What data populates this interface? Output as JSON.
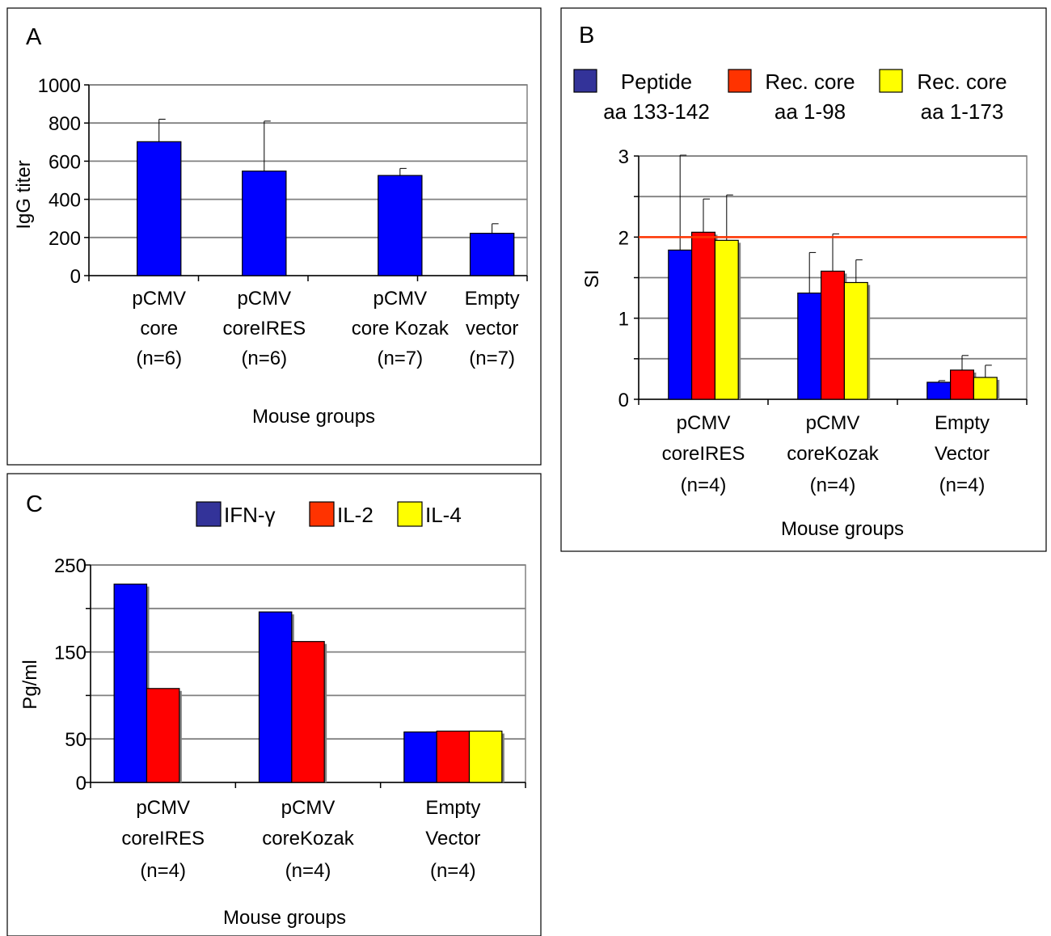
{
  "chart_data": [
    {
      "panel": "A",
      "type": "bar",
      "categories": [
        [
          "pCMV",
          "core",
          "(n=6)"
        ],
        [
          "pCMV",
          "coreIRES",
          "(n=6)"
        ],
        [
          "pCMV",
          "core Kozak",
          "(n=7)"
        ],
        [
          "Empty",
          "vector",
          "(n=7)"
        ]
      ],
      "series": [
        {
          "values": [
            702,
            548,
            525,
            222
          ],
          "errors": [
            118,
            262,
            37,
            50
          ],
          "color": "#0000ff"
        }
      ],
      "xlabel": "Mouse groups",
      "ylabel": "IgG titer",
      "ylim": [
        0,
        1000
      ],
      "yticks": [
        0,
        200,
        400,
        600,
        800,
        1000
      ],
      "ytick_labels": [
        "0",
        "200",
        "400",
        "600",
        "800",
        "1000"
      ],
      "grid": true
    },
    {
      "panel": "B",
      "type": "bar",
      "categories": [
        [
          "pCMV",
          "coreIRES",
          "(n=4)"
        ],
        [
          "pCMV",
          "coreKozak",
          "(n=4)"
        ],
        [
          "Empty",
          "Vector",
          "(n=4)"
        ]
      ],
      "series": [
        {
          "name": [
            "Peptide",
            "aa 133-142"
          ],
          "values": [
            1.84,
            1.31,
            0.21
          ],
          "errors": [
            1.17,
            0.5,
            0.02
          ],
          "color": "#0000ff",
          "legend_color": "#333399"
        },
        {
          "name": [
            "Rec. core",
            "aa 1-98"
          ],
          "values": [
            2.06,
            1.58,
            0.36
          ],
          "errors": [
            0.41,
            0.46,
            0.18
          ],
          "color": "#ff0000",
          "legend_color": "#ff3300"
        },
        {
          "name": [
            "Rec. core",
            "aa 1-173"
          ],
          "values": [
            1.96,
            1.44,
            0.27
          ],
          "errors": [
            0.56,
            0.28,
            0.15
          ],
          "color": "#ffff00",
          "legend_color": "#ffff00"
        }
      ],
      "reference_line": {
        "y": 2,
        "color": "#ff3300"
      },
      "xlabel": "Mouse groups",
      "ylabel": "SI",
      "ylim": [
        0,
        3
      ],
      "yticks": [
        0,
        1,
        2,
        3
      ],
      "ytick_labels": [
        "0",
        "1",
        "2",
        "3"
      ],
      "grid_step": 0.5,
      "grid": true,
      "legend": "top"
    },
    {
      "panel": "C",
      "type": "bar",
      "categories": [
        [
          "pCMV",
          "coreIRES",
          "(n=4)"
        ],
        [
          "pCMV",
          "coreKozak",
          "(n=4)"
        ],
        [
          "Empty",
          "Vector",
          "(n=4)"
        ]
      ],
      "series": [
        {
          "name": "IFN-γ",
          "values": [
            228,
            196,
            58
          ],
          "color": "#0000ff",
          "legend_color": "#333399"
        },
        {
          "name": "IL-2",
          "values": [
            108,
            162,
            59
          ],
          "color": "#ff0000",
          "legend_color": "#ff3300"
        },
        {
          "name": "IL-4",
          "values": [
            null,
            null,
            59
          ],
          "color": "#ffff00",
          "legend_color": "#ffff00"
        }
      ],
      "xlabel": "Mouse groups",
      "ylabel": "Pg/ml",
      "ylim": [
        0,
        250
      ],
      "yticks": [
        0,
        50,
        150,
        250
      ],
      "ytick_labels": [
        "0",
        "50",
        "150",
        "250"
      ],
      "grid_step": 50,
      "grid": true,
      "legend": "top"
    }
  ]
}
